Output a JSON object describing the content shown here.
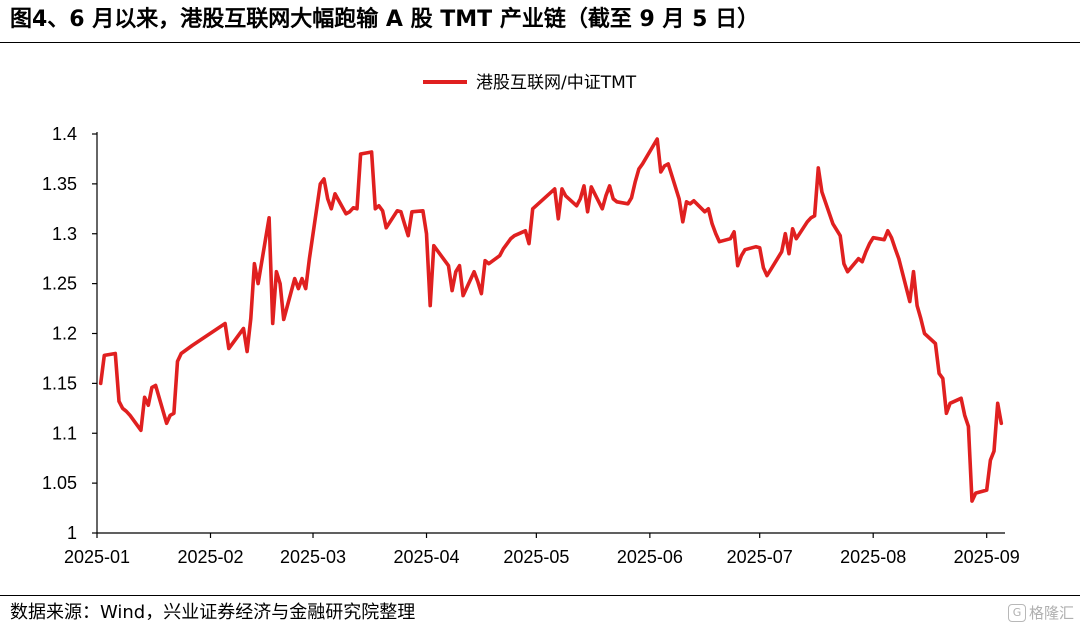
{
  "header": {
    "title": "图4、6 月以来，港股互联网大幅跑输 A 股 TMT 产业链（截至 9 月 5 日）"
  },
  "footer": {
    "source": "数据来源：Wind，兴业证券经济与金融研究院整理",
    "watermark": "格隆汇"
  },
  "colors": {
    "series": "#e02020",
    "axis": "#000000"
  },
  "chart_data": {
    "type": "line",
    "title": "",
    "xlabel": "",
    "ylabel": "",
    "ylim": [
      1,
      1.4
    ],
    "yticks": [
      1,
      1.05,
      1.1,
      1.15,
      1.2,
      1.25,
      1.3,
      1.35,
      1.4
    ],
    "ytick_labels": [
      "1",
      "1.05",
      "1.1",
      "1.15",
      "1.2",
      "1.25",
      "1.3",
      "1.35",
      "1.4"
    ],
    "xticks": [
      "2025-01",
      "2025-02",
      "2025-03",
      "2025-04",
      "2025-05",
      "2025-06",
      "2025-07",
      "2025-08",
      "2025-09"
    ],
    "grid": false,
    "legend": "top-center",
    "series": [
      {
        "name": "港股互联网/中证TMT",
        "color": "#e02020",
        "x": [
          "2025-01-02",
          "2025-01-03",
          "2025-01-06",
          "2025-01-07",
          "2025-01-08",
          "2025-01-09",
          "2025-01-10",
          "2025-01-13",
          "2025-01-14",
          "2025-01-15",
          "2025-01-16",
          "2025-01-17",
          "2025-01-20",
          "2025-01-21",
          "2025-01-22",
          "2025-01-23",
          "2025-01-24",
          "2025-01-27",
          "2025-02-05",
          "2025-02-06",
          "2025-02-07",
          "2025-02-10",
          "2025-02-11",
          "2025-02-12",
          "2025-02-13",
          "2025-02-14",
          "2025-02-17",
          "2025-02-18",
          "2025-02-19",
          "2025-02-20",
          "2025-02-21",
          "2025-02-24",
          "2025-02-25",
          "2025-02-26",
          "2025-02-27",
          "2025-02-28",
          "2025-03-03",
          "2025-03-04",
          "2025-03-05",
          "2025-03-06",
          "2025-03-07",
          "2025-03-10",
          "2025-03-11",
          "2025-03-12",
          "2025-03-13",
          "2025-03-14",
          "2025-03-17",
          "2025-03-18",
          "2025-03-19",
          "2025-03-20",
          "2025-03-21",
          "2025-03-24",
          "2025-03-25",
          "2025-03-26",
          "2025-03-27",
          "2025-03-28",
          "2025-03-31",
          "2025-04-01",
          "2025-04-02",
          "2025-04-03",
          "2025-04-07",
          "2025-04-08",
          "2025-04-09",
          "2025-04-10",
          "2025-04-11",
          "2025-04-14",
          "2025-04-15",
          "2025-04-16",
          "2025-04-17",
          "2025-04-18",
          "2025-04-21",
          "2025-04-22",
          "2025-04-23",
          "2025-04-24",
          "2025-04-25",
          "2025-04-28",
          "2025-04-29",
          "2025-04-30",
          "2025-05-06",
          "2025-05-07",
          "2025-05-08",
          "2025-05-09",
          "2025-05-12",
          "2025-05-13",
          "2025-05-14",
          "2025-05-15",
          "2025-05-16",
          "2025-05-19",
          "2025-05-20",
          "2025-05-21",
          "2025-05-22",
          "2025-05-23",
          "2025-05-26",
          "2025-05-27",
          "2025-05-28",
          "2025-05-29",
          "2025-05-30",
          "2025-06-03",
          "2025-06-04",
          "2025-06-05",
          "2025-06-06",
          "2025-06-09",
          "2025-06-10",
          "2025-06-11",
          "2025-06-12",
          "2025-06-13",
          "2025-06-16",
          "2025-06-17",
          "2025-06-18",
          "2025-06-19",
          "2025-06-20",
          "2025-06-23",
          "2025-06-24",
          "2025-06-25",
          "2025-06-26",
          "2025-06-27",
          "2025-06-30",
          "2025-07-01",
          "2025-07-02",
          "2025-07-03",
          "2025-07-04",
          "2025-07-07",
          "2025-07-08",
          "2025-07-09",
          "2025-07-10",
          "2025-07-11",
          "2025-07-14",
          "2025-07-15",
          "2025-07-16",
          "2025-07-17",
          "2025-07-18",
          "2025-07-21",
          "2025-07-22",
          "2025-07-23",
          "2025-07-24",
          "2025-07-25",
          "2025-07-28",
          "2025-07-29",
          "2025-07-30",
          "2025-07-31",
          "2025-08-01",
          "2025-08-04",
          "2025-08-05",
          "2025-08-06",
          "2025-08-07",
          "2025-08-08",
          "2025-08-11",
          "2025-08-12",
          "2025-08-13",
          "2025-08-14",
          "2025-08-15",
          "2025-08-18",
          "2025-08-19",
          "2025-08-20",
          "2025-08-21",
          "2025-08-22",
          "2025-08-25",
          "2025-08-26",
          "2025-08-27",
          "2025-08-28",
          "2025-08-29",
          "2025-09-01",
          "2025-09-02",
          "2025-09-03",
          "2025-09-04",
          "2025-09-05"
        ],
        "values": [
          1.15,
          1.178,
          1.18,
          1.132,
          1.125,
          1.122,
          1.118,
          1.103,
          1.136,
          1.128,
          1.146,
          1.148,
          1.11,
          1.118,
          1.12,
          1.172,
          1.18,
          1.188,
          1.21,
          1.185,
          1.19,
          1.205,
          1.182,
          1.215,
          1.27,
          1.25,
          1.316,
          1.21,
          1.262,
          1.25,
          1.214,
          1.255,
          1.245,
          1.255,
          1.245,
          1.275,
          1.35,
          1.355,
          1.335,
          1.325,
          1.34,
          1.32,
          1.322,
          1.326,
          1.325,
          1.38,
          1.382,
          1.325,
          1.328,
          1.323,
          1.306,
          1.323,
          1.322,
          1.31,
          1.298,
          1.322,
          1.323,
          1.3,
          1.228,
          1.288,
          1.268,
          1.243,
          1.262,
          1.268,
          1.238,
          1.262,
          1.252,
          1.24,
          1.273,
          1.27,
          1.278,
          1.285,
          1.29,
          1.295,
          1.298,
          1.303,
          1.29,
          1.325,
          1.345,
          1.315,
          1.345,
          1.338,
          1.328,
          1.335,
          1.348,
          1.322,
          1.347,
          1.325,
          1.338,
          1.348,
          1.335,
          1.332,
          1.33,
          1.336,
          1.352,
          1.365,
          1.37,
          1.395,
          1.362,
          1.368,
          1.37,
          1.335,
          1.312,
          1.332,
          1.33,
          1.333,
          1.322,
          1.325,
          1.31,
          1.3,
          1.292,
          1.295,
          1.302,
          1.268,
          1.278,
          1.284,
          1.287,
          1.286,
          1.266,
          1.258,
          1.264,
          1.282,
          1.3,
          1.28,
          1.305,
          1.295,
          1.312,
          1.316,
          1.318,
          1.366,
          1.342,
          1.31,
          1.304,
          1.298,
          1.27,
          1.262,
          1.275,
          1.272,
          1.282,
          1.29,
          1.296,
          1.294,
          1.303,
          1.296,
          1.285,
          1.275,
          1.232,
          1.262,
          1.228,
          1.215,
          1.2,
          1.19,
          1.16,
          1.155,
          1.12,
          1.13,
          1.135,
          1.118,
          1.107,
          1.032,
          1.04,
          1.043,
          1.073,
          1.082,
          1.13,
          1.11
        ]
      }
    ]
  }
}
